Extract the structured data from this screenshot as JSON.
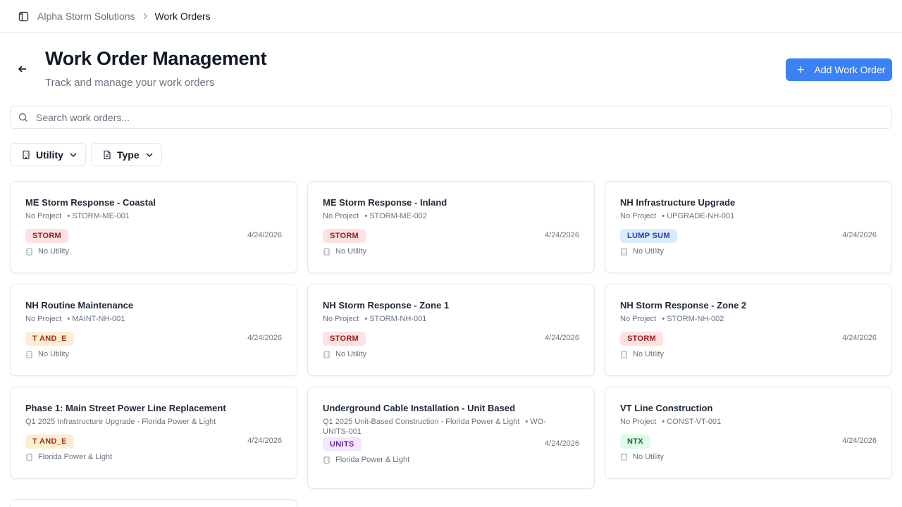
{
  "breadcrumb": {
    "company": "Alpha Storm Solutions",
    "current": "Work Orders"
  },
  "header": {
    "title": "Work Order Management",
    "subtitle": "Track and manage your work orders",
    "add_label": "Add Work Order",
    "add_color": "#3b82f6"
  },
  "search": {
    "placeholder": "Search work orders..."
  },
  "filters": {
    "utility": "Utility",
    "type": "Type"
  },
  "badge_colors": {
    "STORM": "#fee2e2",
    "LUMP SUM": "#dbeafe",
    "T AND_E": "#ffedd5",
    "UNITS": "#f3e8ff",
    "NTX": "#dcfce7"
  },
  "work_orders": [
    {
      "title": "ME Storm Response - Coastal",
      "project": "No Project",
      "code": "STORM-ME-001",
      "type": "STORM",
      "date": "4/24/2026",
      "utility": "No Utility"
    },
    {
      "title": "ME Storm Response - Inland",
      "project": "No Project",
      "code": "STORM-ME-002",
      "type": "STORM",
      "date": "4/24/2026",
      "utility": "No Utility"
    },
    {
      "title": "NH Infrastructure Upgrade",
      "project": "No Project",
      "code": "UPGRADE-NH-001",
      "type": "LUMP SUM",
      "date": "4/24/2026",
      "utility": "No Utility"
    },
    {
      "title": "NH Routine Maintenance",
      "project": "No Project",
      "code": "MAINT-NH-001",
      "type": "T AND_E",
      "date": "4/24/2026",
      "utility": "No Utility"
    },
    {
      "title": "NH Storm Response - Zone 1",
      "project": "No Project",
      "code": "STORM-NH-001",
      "type": "STORM",
      "date": "4/24/2026",
      "utility": "No Utility"
    },
    {
      "title": "NH Storm Response - Zone 2",
      "project": "No Project",
      "code": "STORM-NH-002",
      "type": "STORM",
      "date": "4/24/2026",
      "utility": "No Utility"
    },
    {
      "title": "Phase 1: Main Street Power Line Replacement",
      "project": "Q1 2025 Infrastructure Upgrade - Florida Power & Light",
      "code": "",
      "type": "T AND_E",
      "date": "4/24/2026",
      "utility": "Florida Power & Light"
    },
    {
      "title": "Underground Cable Installation - Unit Based",
      "project": "Q1 2025 Unit-Based Construction - Florida Power & Light",
      "code": "WO-UNITS-001",
      "type": "UNITS",
      "date": "4/24/2026",
      "utility": "Florida Power & Light"
    },
    {
      "title": "VT Line Construction",
      "project": "No Project",
      "code": "CONST-VT-001",
      "type": "NTX",
      "date": "4/24/2026",
      "utility": "No Utility"
    }
  ]
}
